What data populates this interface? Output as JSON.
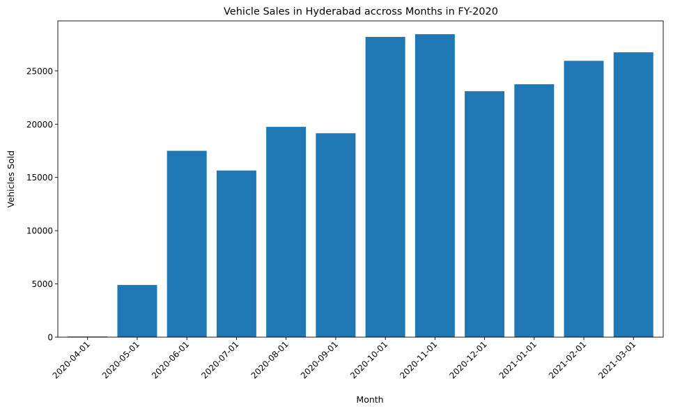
{
  "chart_data": {
    "type": "bar",
    "title": "Vehicle Sales in Hyderabad accross Months in FY-2020",
    "xlabel": "Month",
    "ylabel": "Vehicles Sold",
    "categories": [
      "2020-04-01",
      "2020-05-01",
      "2020-06-01",
      "2020-07-01",
      "2020-08-01",
      "2020-09-01",
      "2020-10-01",
      "2020-11-01",
      "2020-12-01",
      "2021-01-01",
      "2021-02-01",
      "2021-03-01"
    ],
    "values": [
      60,
      4900,
      17500,
      15650,
      19750,
      19150,
      28200,
      28450,
      23100,
      23750,
      25950,
      26750
    ],
    "ylim": [
      0,
      29700
    ],
    "yticks": [
      0,
      5000,
      10000,
      15000,
      20000,
      25000
    ],
    "ytick_labels": [
      "0",
      "5000",
      "10000",
      "15000",
      "20000",
      "25000"
    ],
    "bar_color": "#1f77b4",
    "grid": false,
    "legend": "none"
  }
}
